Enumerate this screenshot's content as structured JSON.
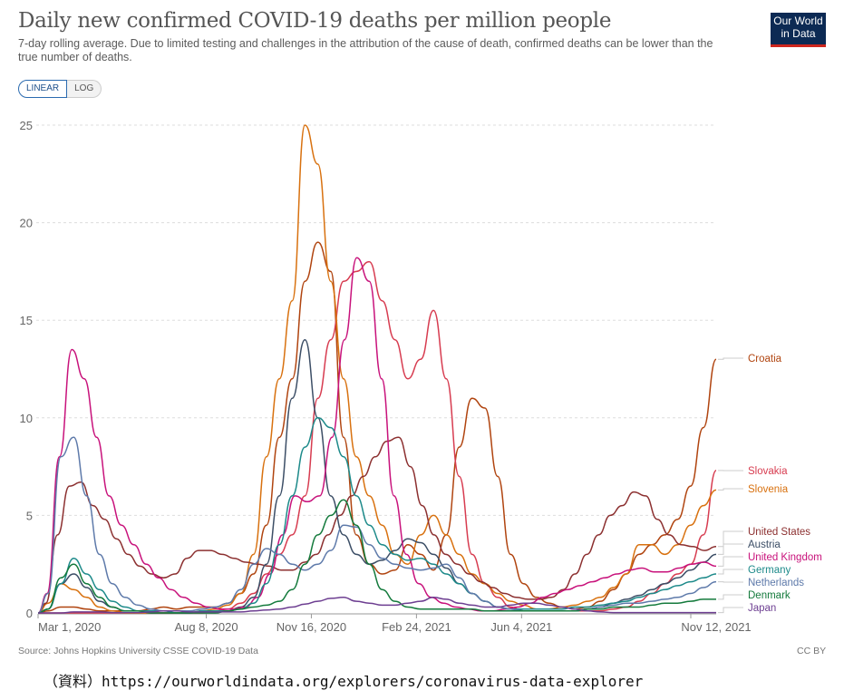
{
  "header": {
    "title": "Daily new confirmed COVID-19 deaths per million people",
    "subtitle": "7-day rolling average. Due to limited testing and challenges in the attribution of the cause of death, confirmed deaths can be lower than the true number of deaths.",
    "logo_line1": "Our World",
    "logo_line2": "in Data"
  },
  "controls": {
    "linear_label": "LINEAR",
    "log_label": "LOG",
    "selected": "LINEAR"
  },
  "footer": {
    "source": "Source: Johns Hopkins University CSSE COVID-19 Data",
    "license": "CC BY",
    "url_note": "（資料）https://ourworldindata.org/explorers/coronavirus-data-explorer"
  },
  "chart_data": {
    "type": "line",
    "title": "Daily new confirmed COVID-19 deaths per million people",
    "xlabel": "",
    "ylabel": "",
    "ylim": [
      0,
      25
    ],
    "yticks": [
      0,
      5,
      10,
      15,
      20,
      25
    ],
    "xticks": [
      "Mar 1, 2020",
      "Aug 8, 2020",
      "Nov 16, 2020",
      "Feb 24, 2021",
      "Jun 4, 2021",
      "Nov 12, 2021"
    ],
    "x_start": "2020-02-15",
    "x_step_days": 14,
    "grid": true,
    "legend": "right-end-labels",
    "series": [
      {
        "name": "Croatia",
        "color": "#b0440f",
        "values": [
          0,
          0,
          0.1,
          0.3,
          0.3,
          0.2,
          0.1,
          0.1,
          0.1,
          0.1,
          0.2,
          0.3,
          0.2,
          0.3,
          0.3,
          0.3,
          0.5,
          1,
          2,
          4.5,
          9,
          12,
          17,
          19,
          17.5,
          9,
          4,
          2.5,
          2,
          2.2,
          3.5,
          3,
          2.2,
          4,
          8.5,
          11,
          10.5,
          7,
          3,
          1.5,
          0.8,
          0.5,
          0.3,
          0.2,
          0.3,
          0.6,
          1.2,
          2,
          3,
          3.5,
          4,
          4.8,
          6.5,
          9.5,
          13
        ]
      },
      {
        "name": "Slovakia",
        "color": "#d73c50",
        "values": [
          0,
          0,
          0,
          0,
          0,
          0,
          0,
          0,
          0,
          0,
          0,
          0,
          0,
          0,
          0,
          0.1,
          0.2,
          0.5,
          1,
          2,
          3,
          4,
          6,
          11,
          14,
          17,
          17.5,
          18,
          16,
          14,
          12,
          13,
          15.5,
          12,
          7,
          3,
          1.5,
          0.8,
          0.3,
          0.1,
          0.1,
          0.1,
          0.1,
          0.1,
          0.1,
          0.1,
          0.2,
          0.3,
          0.6,
          1,
          1.5,
          2,
          2.5,
          4,
          7.3
        ]
      },
      {
        "name": "Slovenia",
        "color": "#d8710f",
        "values": [
          0,
          0,
          0.5,
          1.5,
          1.2,
          0.8,
          0.3,
          0.1,
          0,
          0,
          0,
          0,
          0,
          0,
          0.1,
          0.2,
          0.4,
          1,
          3,
          8,
          12,
          16,
          25,
          23,
          17,
          12,
          8,
          6,
          4.5,
          3,
          2.5,
          4,
          5,
          4,
          3,
          2,
          1.5,
          1,
          0.6,
          0.4,
          0.2,
          0.2,
          0.3,
          0.4,
          0.6,
          0.8,
          1.3,
          2,
          3.5,
          3.5,
          3,
          3.5,
          4.5,
          5.5,
          6.3
        ]
      },
      {
        "name": "United States",
        "color": "#8c3030",
        "values": [
          0,
          0,
          0.5,
          4,
          6.5,
          6.7,
          5.5,
          4.8,
          3.8,
          3,
          2.4,
          2,
          1.8,
          2,
          2.8,
          3.2,
          3.2,
          3,
          2.8,
          2.6,
          2.5,
          2.4,
          2.2,
          2.2,
          2.6,
          3,
          4,
          5,
          6,
          7,
          8,
          8.8,
          9,
          7.5,
          5.5,
          4,
          3,
          2.5,
          2,
          1.6,
          1.3,
          1,
          0.8,
          0.7,
          0.7,
          0.8,
          1.2,
          2,
          3,
          4,
          5,
          5.5,
          6.2,
          6,
          4.8,
          4,
          3.5,
          3.4,
          3.2,
          3.4
        ]
      },
      {
        "name": "Austria",
        "color": "#3c4e66",
        "values": [
          0,
          0,
          0.2,
          1.5,
          2,
          1.3,
          0.6,
          0.3,
          0.1,
          0.1,
          0,
          0,
          0,
          0,
          0.1,
          0.1,
          0.1,
          0.3,
          0.8,
          2.5,
          6,
          11,
          14,
          10,
          6,
          4,
          3,
          2.5,
          2.7,
          3.2,
          3.8,
          3.6,
          3,
          2.3,
          1.5,
          1,
          0.6,
          0.3,
          0.2,
          0.1,
          0.1,
          0.1,
          0.1,
          0.1,
          0.2,
          0.3,
          0.5,
          0.7,
          0.9,
          1.2,
          1.5,
          1.8,
          2.2,
          2.6,
          3
        ]
      },
      {
        "name": "United Kingdom",
        "color": "#c8127b",
        "values": [
          0,
          0,
          1,
          8,
          13.5,
          12,
          9,
          6,
          4.5,
          3.5,
          2.5,
          1.8,
          1.2,
          0.8,
          0.5,
          0.3,
          0.2,
          0.2,
          0.3,
          0.8,
          2,
          4,
          6,
          5.7,
          6,
          9,
          14,
          18.2,
          17,
          12,
          6,
          3,
          1.5,
          0.8,
          0.5,
          0.3,
          0.2,
          0.1,
          0.1,
          0.2,
          0.3,
          0.5,
          0.8,
          1,
          1.2,
          1.4,
          1.6,
          1.8,
          2,
          2.2,
          2.3,
          2.1,
          2.1,
          2.3,
          2.5,
          2.6,
          2.4
        ]
      },
      {
        "name": "Germany",
        "color": "#1d8a8a",
        "values": [
          0,
          0,
          0.2,
          1.5,
          2.8,
          2,
          1.2,
          0.6,
          0.3,
          0.1,
          0.1,
          0.1,
          0,
          0,
          0.1,
          0.1,
          0.1,
          0.2,
          0.5,
          1.5,
          3.5,
          6,
          8.5,
          10,
          9.5,
          8,
          6,
          4.5,
          3.5,
          3,
          2.7,
          2.8,
          2.5,
          2,
          1.5,
          1,
          0.6,
          0.3,
          0.2,
          0.2,
          0.2,
          0.2,
          0.2,
          0.3,
          0.3,
          0.4,
          0.5,
          0.6,
          0.8,
          1,
          1.2,
          1.4,
          1.6,
          1.8,
          2
        ]
      },
      {
        "name": "Netherlands",
        "color": "#5e7aaa",
        "values": [
          0,
          0,
          1,
          8,
          9,
          6,
          3,
          1.5,
          0.8,
          0.4,
          0.2,
          0.1,
          0.1,
          0.1,
          0.2,
          0.3,
          0.5,
          1.2,
          2.5,
          3.3,
          3,
          2.5,
          2.2,
          2.5,
          3.2,
          4.5,
          4.4,
          3.5,
          2.8,
          2.5,
          2.3,
          2.2,
          2.3,
          2.5,
          1.8,
          1,
          0.6,
          0.3,
          0.2,
          0.1,
          0.1,
          0.1,
          0.1,
          0.1,
          0.2,
          0.3,
          0.4,
          0.5,
          0.5,
          0.6,
          0.7,
          0.8,
          1,
          1.3,
          1.6
        ]
      },
      {
        "name": "Denmark",
        "color": "#147a3c",
        "values": [
          0,
          0,
          0.2,
          1.8,
          2.5,
          1.5,
          0.8,
          0.3,
          0.1,
          0.1,
          0,
          0,
          0,
          0,
          0,
          0,
          0.1,
          0.2,
          0.3,
          0.4,
          0.6,
          1.2,
          2.5,
          4,
          5,
          5.8,
          4.5,
          2.5,
          1.2,
          0.6,
          0.3,
          0.2,
          0.2,
          0.2,
          0.2,
          0.2,
          0.1,
          0.1,
          0.1,
          0.1,
          0.1,
          0.1,
          0.1,
          0.1,
          0.2,
          0.2,
          0.3,
          0.3,
          0.3,
          0.4,
          0.5,
          0.5,
          0.6,
          0.7,
          0.7
        ]
      },
      {
        "name": "Japan",
        "color": "#6d3e91",
        "values": [
          0,
          0,
          0,
          0,
          0.05,
          0.05,
          0.05,
          0.02,
          0.02,
          0.02,
          0.05,
          0.1,
          0.1,
          0.05,
          0.05,
          0.05,
          0.05,
          0.05,
          0.1,
          0.15,
          0.2,
          0.3,
          0.45,
          0.6,
          0.75,
          0.8,
          0.6,
          0.5,
          0.4,
          0.4,
          0.5,
          0.6,
          0.8,
          0.7,
          0.5,
          0.4,
          0.3,
          0.3,
          0.4,
          0.5,
          0.5,
          0.4,
          0.3,
          0.2,
          0.1,
          0.05,
          0.02,
          0.02,
          0.02,
          0.02,
          0.02,
          0.02,
          0.02,
          0.02,
          0.02
        ]
      }
    ],
    "end_labels": [
      "Croatia",
      "Slovakia",
      "Slovenia",
      "United States",
      "Austria",
      "United Kingdom",
      "Germany",
      "Netherlands",
      "Denmark",
      "Japan"
    ]
  }
}
